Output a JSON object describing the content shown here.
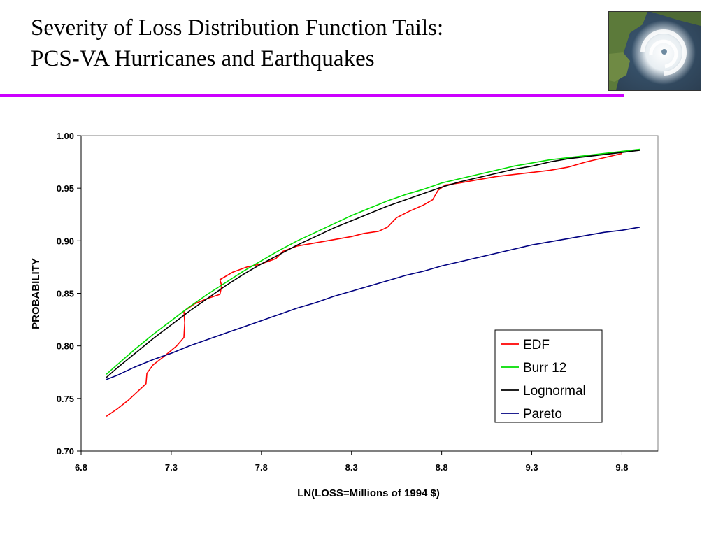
{
  "slide": {
    "title_line1": "Severity of Loss Distribution Function Tails:",
    "title_line2": "PCS-VA Hurricanes and Earthquakes",
    "accent_color": "#cc00ff",
    "image_icon": "hurricane-satellite-image"
  },
  "chart_data": {
    "type": "line",
    "xlabel": "LN(LOSS=Millions of 1994 $)",
    "ylabel": "PROBABILITY",
    "xlim": [
      6.8,
      10.0
    ],
    "ylim": [
      0.7,
      1.0
    ],
    "x_ticks": [
      "6.8",
      "7.3",
      "7.8",
      "8.3",
      "8.8",
      "9.3",
      "9.8"
    ],
    "y_ticks": [
      "0.70",
      "0.75",
      "0.80",
      "0.85",
      "0.90",
      "0.95",
      "1.00"
    ],
    "grid": false,
    "legend_position": "lower-right",
    "series": [
      {
        "name": "EDF",
        "color": "#ff0000",
        "points": [
          [
            6.94,
            0.733
          ],
          [
            7.0,
            0.74
          ],
          [
            7.06,
            0.748
          ],
          [
            7.11,
            0.756
          ],
          [
            7.16,
            0.764
          ],
          [
            7.165,
            0.774
          ],
          [
            7.2,
            0.782
          ],
          [
            7.26,
            0.79
          ],
          [
            7.33,
            0.8
          ],
          [
            7.37,
            0.808
          ],
          [
            7.375,
            0.822
          ],
          [
            7.37,
            0.833
          ],
          [
            7.43,
            0.84
          ],
          [
            7.5,
            0.845
          ],
          [
            7.57,
            0.849
          ],
          [
            7.58,
            0.857
          ],
          [
            7.57,
            0.863
          ],
          [
            7.64,
            0.87
          ],
          [
            7.72,
            0.875
          ],
          [
            7.8,
            0.878
          ],
          [
            7.88,
            0.883
          ],
          [
            7.92,
            0.89
          ],
          [
            8.0,
            0.895
          ],
          [
            8.1,
            0.898
          ],
          [
            8.2,
            0.901
          ],
          [
            8.3,
            0.904
          ],
          [
            8.37,
            0.907
          ],
          [
            8.45,
            0.909
          ],
          [
            8.5,
            0.913
          ],
          [
            8.55,
            0.922
          ],
          [
            8.62,
            0.928
          ],
          [
            8.7,
            0.934
          ],
          [
            8.75,
            0.939
          ],
          [
            8.78,
            0.948
          ],
          [
            8.82,
            0.953
          ],
          [
            8.9,
            0.955
          ],
          [
            9.0,
            0.958
          ],
          [
            9.1,
            0.961
          ],
          [
            9.2,
            0.963
          ],
          [
            9.3,
            0.965
          ],
          [
            9.4,
            0.967
          ],
          [
            9.5,
            0.97
          ],
          [
            9.6,
            0.975
          ],
          [
            9.7,
            0.979
          ],
          [
            9.8,
            0.983
          ]
        ]
      },
      {
        "name": "Burr 12",
        "color": "#00dd00",
        "points": [
          [
            6.94,
            0.773
          ],
          [
            7.0,
            0.782
          ],
          [
            7.1,
            0.797
          ],
          [
            7.2,
            0.811
          ],
          [
            7.3,
            0.824
          ],
          [
            7.4,
            0.837
          ],
          [
            7.5,
            0.849
          ],
          [
            7.6,
            0.86
          ],
          [
            7.7,
            0.871
          ],
          [
            7.8,
            0.881
          ],
          [
            7.9,
            0.891
          ],
          [
            8.0,
            0.9
          ],
          [
            8.1,
            0.908
          ],
          [
            8.2,
            0.916
          ],
          [
            8.3,
            0.924
          ],
          [
            8.4,
            0.931
          ],
          [
            8.5,
            0.938
          ],
          [
            8.6,
            0.944
          ],
          [
            8.7,
            0.949
          ],
          [
            8.8,
            0.955
          ],
          [
            8.9,
            0.959
          ],
          [
            9.0,
            0.963
          ],
          [
            9.1,
            0.967
          ],
          [
            9.2,
            0.971
          ],
          [
            9.3,
            0.974
          ],
          [
            9.4,
            0.977
          ],
          [
            9.5,
            0.979
          ],
          [
            9.6,
            0.981
          ],
          [
            9.7,
            0.983
          ],
          [
            9.8,
            0.985
          ],
          [
            9.9,
            0.987
          ]
        ]
      },
      {
        "name": "Lognormal",
        "color": "#000000",
        "points": [
          [
            6.94,
            0.77
          ],
          [
            7.0,
            0.779
          ],
          [
            7.1,
            0.793
          ],
          [
            7.2,
            0.807
          ],
          [
            7.3,
            0.82
          ],
          [
            7.4,
            0.833
          ],
          [
            7.5,
            0.845
          ],
          [
            7.6,
            0.857
          ],
          [
            7.7,
            0.868
          ],
          [
            7.8,
            0.878
          ],
          [
            7.9,
            0.887
          ],
          [
            8.0,
            0.896
          ],
          [
            8.1,
            0.904
          ],
          [
            8.2,
            0.912
          ],
          [
            8.3,
            0.919
          ],
          [
            8.4,
            0.926
          ],
          [
            8.5,
            0.933
          ],
          [
            8.6,
            0.939
          ],
          [
            8.7,
            0.945
          ],
          [
            8.8,
            0.951
          ],
          [
            8.9,
            0.956
          ],
          [
            9.0,
            0.96
          ],
          [
            9.1,
            0.964
          ],
          [
            9.2,
            0.968
          ],
          [
            9.3,
            0.971
          ],
          [
            9.4,
            0.975
          ],
          [
            9.5,
            0.978
          ],
          [
            9.6,
            0.98
          ],
          [
            9.7,
            0.982
          ],
          [
            9.8,
            0.984
          ],
          [
            9.9,
            0.986
          ]
        ]
      },
      {
        "name": "Pareto",
        "color": "#000080",
        "points": [
          [
            6.94,
            0.768
          ],
          [
            7.0,
            0.772
          ],
          [
            7.1,
            0.78
          ],
          [
            7.2,
            0.787
          ],
          [
            7.3,
            0.793
          ],
          [
            7.4,
            0.8
          ],
          [
            7.5,
            0.806
          ],
          [
            7.6,
            0.812
          ],
          [
            7.7,
            0.818
          ],
          [
            7.8,
            0.824
          ],
          [
            7.9,
            0.83
          ],
          [
            8.0,
            0.836
          ],
          [
            8.1,
            0.841
          ],
          [
            8.2,
            0.847
          ],
          [
            8.3,
            0.852
          ],
          [
            8.4,
            0.857
          ],
          [
            8.5,
            0.862
          ],
          [
            8.6,
            0.867
          ],
          [
            8.7,
            0.871
          ],
          [
            8.8,
            0.876
          ],
          [
            8.9,
            0.88
          ],
          [
            9.0,
            0.884
          ],
          [
            9.1,
            0.888
          ],
          [
            9.2,
            0.892
          ],
          [
            9.3,
            0.896
          ],
          [
            9.4,
            0.899
          ],
          [
            9.5,
            0.902
          ],
          [
            9.6,
            0.905
          ],
          [
            9.7,
            0.908
          ],
          [
            9.8,
            0.91
          ],
          [
            9.9,
            0.913
          ]
        ]
      }
    ]
  }
}
